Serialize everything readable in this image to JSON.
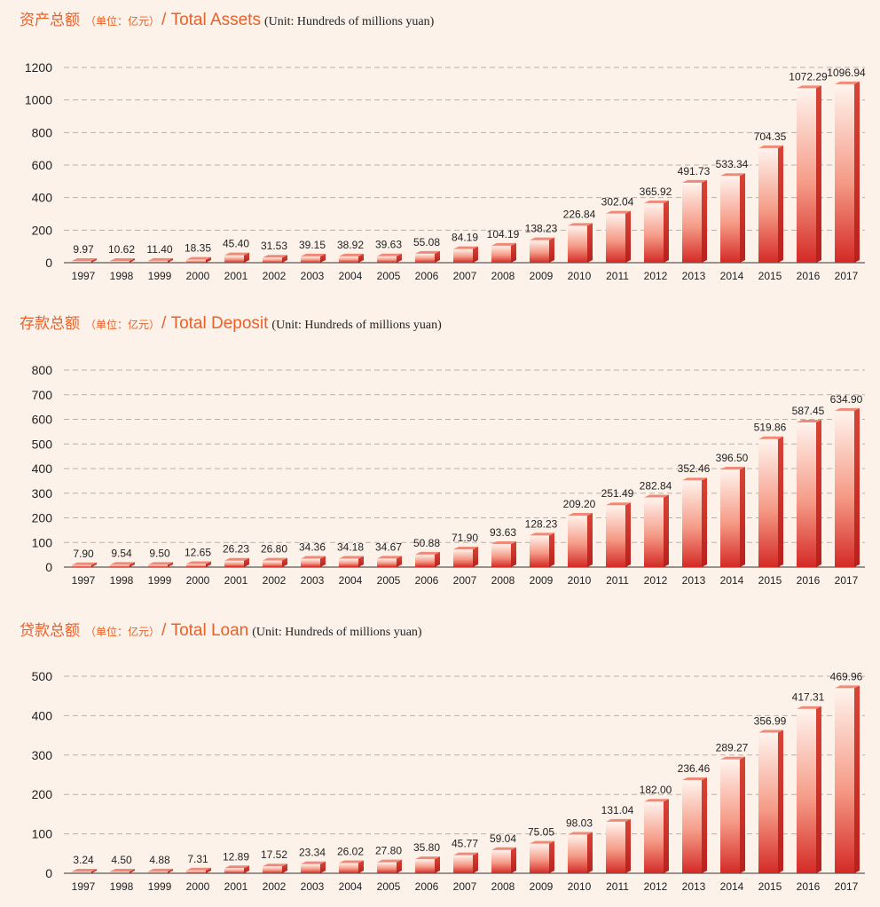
{
  "chart_data": [
    {
      "type": "bar",
      "title_cn": "资产总额",
      "unit_cn": "（单位：亿元）",
      "title_en": "/ Total Assets",
      "unit_en": "(Unit: Hundreds of millions yuan)",
      "categories": [
        "1997",
        "1998",
        "1999",
        "2000",
        "2001",
        "2002",
        "2003",
        "2004",
        "2005",
        "2006",
        "2007",
        "2008",
        "2009",
        "2010",
        "2011",
        "2012",
        "2013",
        "2014",
        "2015",
        "2016",
        "2017"
      ],
      "values": [
        9.97,
        10.62,
        11.4,
        18.35,
        45.4,
        31.53,
        39.15,
        38.92,
        39.63,
        55.08,
        84.19,
        104.19,
        138.23,
        226.84,
        302.04,
        365.92,
        491.73,
        533.34,
        704.35,
        1072.29,
        1096.94
      ],
      "labels": [
        "9.97",
        "10.62",
        "11.40",
        "18.35",
        "45.40",
        "31.53",
        "39.15",
        "38.92",
        "39.63",
        "55.08",
        "84.19",
        "104.19",
        "138.23",
        "226.84",
        "302.04",
        "365.92",
        "491.73",
        "533.34",
        "704.35",
        "1072.29",
        "1096.94"
      ],
      "yticks": [
        0,
        200,
        400,
        600,
        800,
        1000,
        1200
      ],
      "ylim": [
        0,
        1200
      ],
      "grid": true
    },
    {
      "type": "bar",
      "title_cn": "存款总额",
      "unit_cn": "（单位：亿元）",
      "title_en": "/ Total Deposit",
      "unit_en": "(Unit: Hundreds of millions yuan)",
      "categories": [
        "1997",
        "1998",
        "1999",
        "2000",
        "2001",
        "2002",
        "2003",
        "2004",
        "2005",
        "2006",
        "2007",
        "2008",
        "2009",
        "2010",
        "2011",
        "2012",
        "2013",
        "2014",
        "2015",
        "2016",
        "2017"
      ],
      "values": [
        7.9,
        9.54,
        9.5,
        12.65,
        26.23,
        26.8,
        34.36,
        34.18,
        34.67,
        50.88,
        71.9,
        93.63,
        128.23,
        209.2,
        251.49,
        282.84,
        352.46,
        396.5,
        519.86,
        587.45,
        634.9
      ],
      "labels": [
        "7.90",
        "9.54",
        "9.50",
        "12.65",
        "26.23",
        "26.80",
        "34.36",
        "34.18",
        "34.67",
        "50.88",
        "71.90",
        "93.63",
        "128.23",
        "209.20",
        "251.49",
        "282.84",
        "352.46",
        "396.50",
        "519.86",
        "587.45",
        "634.90"
      ],
      "yticks": [
        0,
        100,
        200,
        300,
        400,
        500,
        600,
        700,
        800
      ],
      "ylim": [
        0,
        800
      ],
      "grid": true
    },
    {
      "type": "bar",
      "title_cn": "贷款总额",
      "unit_cn": "（单位：亿元）",
      "title_en": "/ Total Loan",
      "unit_en": "(Unit: Hundreds of millions yuan)",
      "categories": [
        "1997",
        "1998",
        "1999",
        "2000",
        "2001",
        "2002",
        "2003",
        "2004",
        "2005",
        "2006",
        "2007",
        "2008",
        "2009",
        "2010",
        "2011",
        "2012",
        "2013",
        "2014",
        "2015",
        "2016",
        "2017"
      ],
      "values": [
        3.24,
        4.5,
        4.88,
        7.31,
        12.89,
        17.52,
        23.34,
        26.02,
        27.8,
        35.8,
        45.77,
        59.04,
        75.05,
        98.03,
        131.04,
        182.0,
        236.46,
        289.27,
        356.99,
        417.31,
        469.96
      ],
      "labels": [
        "3.24",
        "4.50",
        "4.88",
        "7.31",
        "12.89",
        "17.52",
        "23.34",
        "26.02",
        "27.80",
        "35.80",
        "45.77",
        "59.04",
        "75.05",
        "98.03",
        "131.04",
        "182.00",
        "236.46",
        "289.27",
        "356.99",
        "417.31",
        "469.96"
      ],
      "yticks": [
        0,
        100,
        200,
        300,
        400,
        500
      ],
      "ylim": [
        0,
        500
      ],
      "grid": true
    }
  ],
  "colors": {
    "title": "#e8612a",
    "bar_dark": "#d42a26",
    "bar_light": "#fff4ee",
    "bar_side": "#b8201c",
    "bar_top": "#f08a78",
    "grid": "#b9b0aa",
    "background": "#fdf2ea"
  }
}
